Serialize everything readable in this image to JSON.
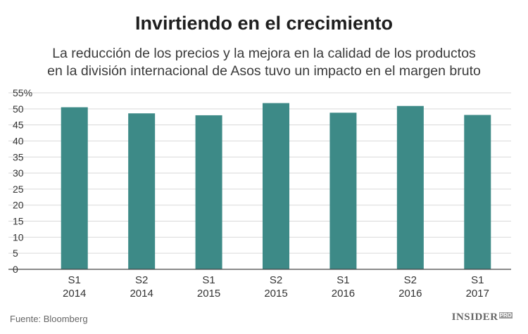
{
  "title": "Invirtiendo en el crecimiento",
  "subtitle_line1": "La reducción de los precios y la mejora en la calidad de los productos",
  "subtitle_line2": "en la división internacional de Asos tuvo un impacto en el margen bruto",
  "source": "Fuente: Bloomberg",
  "brand": {
    "name": "INSIDER",
    "tag": "PRO"
  },
  "colors": {
    "bar": "#3d8a87",
    "grid": "#d9d9d9",
    "axis": "#444444"
  },
  "chart_data": {
    "type": "bar",
    "categories": [
      [
        "S1",
        "2014"
      ],
      [
        "S2",
        "2014"
      ],
      [
        "S1",
        "2015"
      ],
      [
        "S2",
        "2015"
      ],
      [
        "S1",
        "2016"
      ],
      [
        "S2",
        "2016"
      ],
      [
        "S1",
        "2017"
      ]
    ],
    "values": [
      50.5,
      48.6,
      48.0,
      51.8,
      48.8,
      50.9,
      48.1
    ],
    "ylim": [
      0,
      55
    ],
    "yticks": [
      0,
      5,
      10,
      15,
      20,
      25,
      30,
      35,
      40,
      45,
      50,
      55
    ],
    "ytick_labels": [
      "0",
      "5",
      "10",
      "15",
      "20",
      "25",
      "30",
      "35",
      "40",
      "45",
      "50",
      "55%"
    ],
    "grid": true
  }
}
